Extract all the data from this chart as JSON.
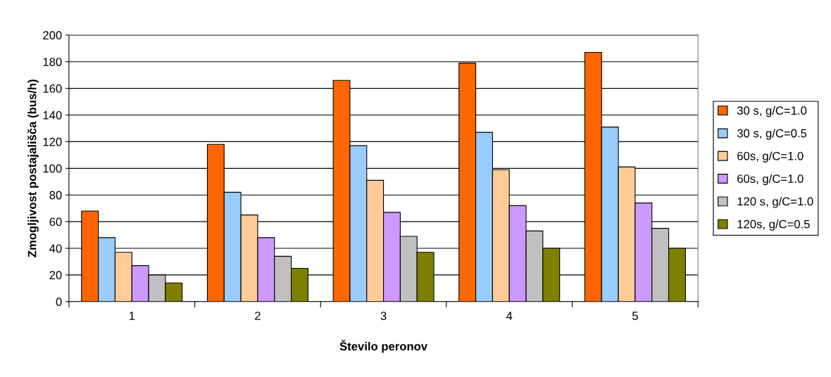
{
  "chart_data": {
    "type": "bar",
    "xlabel": "Število peronov",
    "ylabel": "Zmogljivost postajališča (bus/h)",
    "categories": [
      "1",
      "2",
      "3",
      "4",
      "5"
    ],
    "series": [
      {
        "name": "30 s, g/C=1.0",
        "color": "#ff6600",
        "values": [
          68,
          118,
          166,
          179,
          187
        ]
      },
      {
        "name": "30 s, g/C=0.5",
        "color": "#99ccff",
        "values": [
          48,
          82,
          117,
          127,
          131
        ]
      },
      {
        "name": "60s, g/C=1.0",
        "color": "#ffcc99",
        "values": [
          37,
          65,
          91,
          99,
          101
        ]
      },
      {
        "name": "60s, g/C=1.0",
        "color": "#cc99ff",
        "values": [
          27,
          48,
          67,
          72,
          74
        ]
      },
      {
        "name": "120 s, g/C=1.0",
        "color": "#c0c0c0",
        "values": [
          20,
          34,
          49,
          53,
          55
        ]
      },
      {
        "name": "120s, g/C=0.5",
        "color": "#808000",
        "values": [
          14,
          25,
          37,
          40,
          40
        ]
      }
    ],
    "ylim": [
      0,
      200
    ],
    "yticks": [
      0,
      20,
      40,
      60,
      80,
      100,
      120,
      140,
      160,
      180,
      200
    ],
    "grid": "y",
    "legend": "right"
  }
}
